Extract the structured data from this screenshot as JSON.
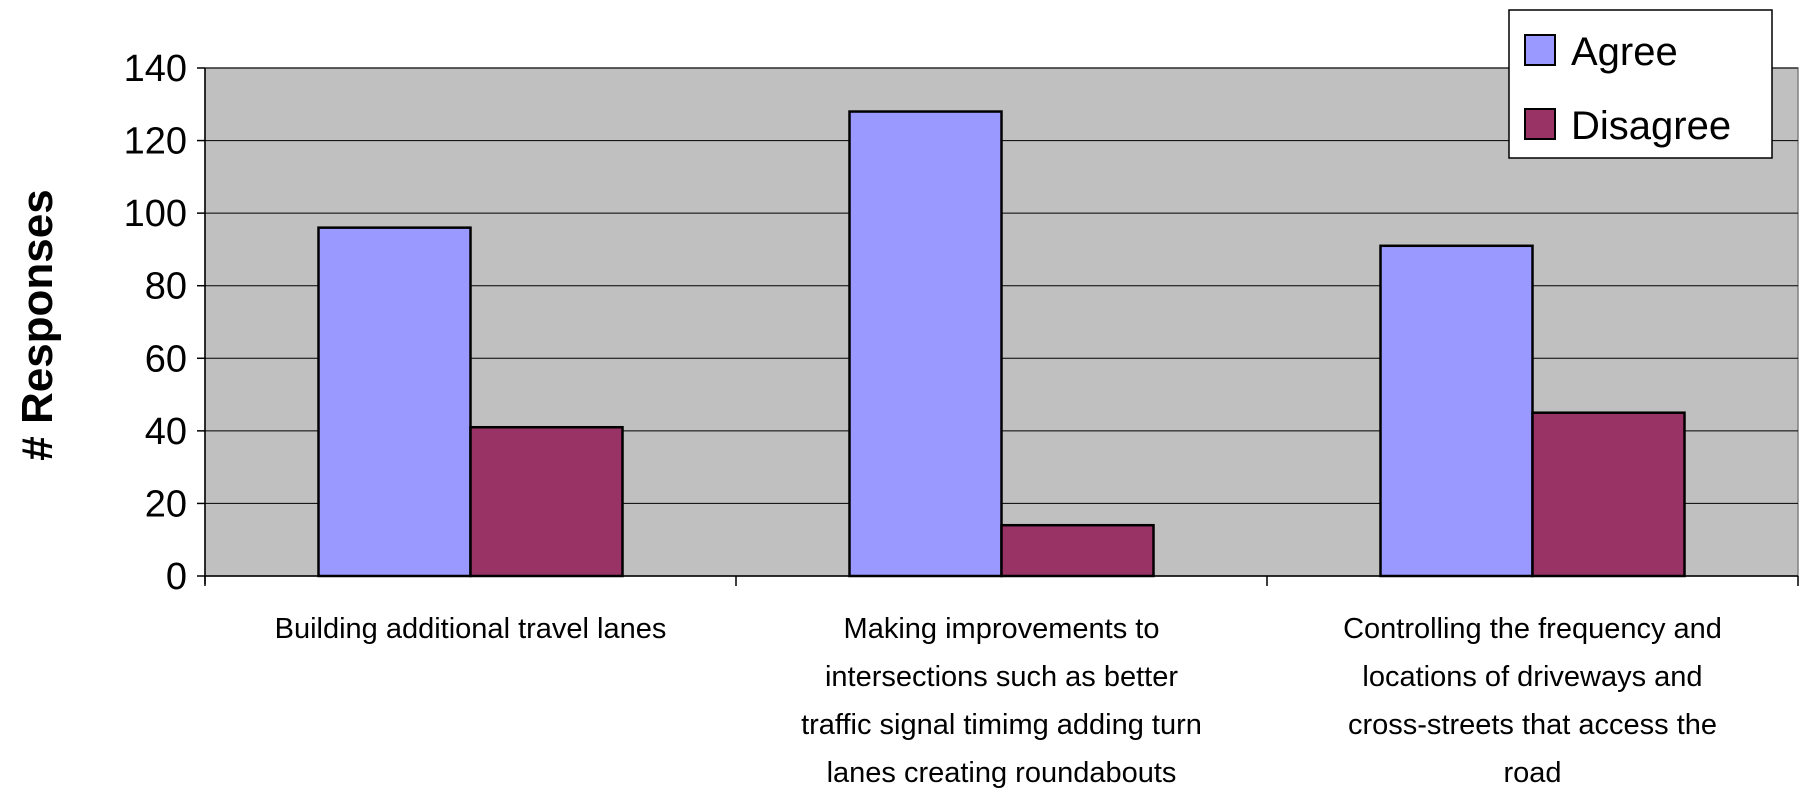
{
  "chart_data": {
    "type": "bar",
    "title": "",
    "xlabel": "",
    "ylabel": "# Responses",
    "ylim": [
      0,
      140
    ],
    "yticks": [
      0,
      20,
      40,
      60,
      80,
      100,
      120,
      140
    ],
    "grid": true,
    "legend_position": "top-right",
    "plot_background": "#c0c0c0",
    "categories": [
      [
        "Building additional travel lanes"
      ],
      [
        "Making improvements to",
        "intersections such as better",
        "traffic signal timimg adding turn",
        "lanes creating roundabouts"
      ],
      [
        "Controlling the frequency and",
        "locations of driveways and",
        "cross-streets that access the",
        "road"
      ]
    ],
    "series": [
      {
        "name": "Agree",
        "color": "#9999ff",
        "values": [
          96,
          128,
          91
        ]
      },
      {
        "name": "Disagree",
        "color": "#993366",
        "values": [
          41,
          14,
          45
        ]
      }
    ]
  }
}
